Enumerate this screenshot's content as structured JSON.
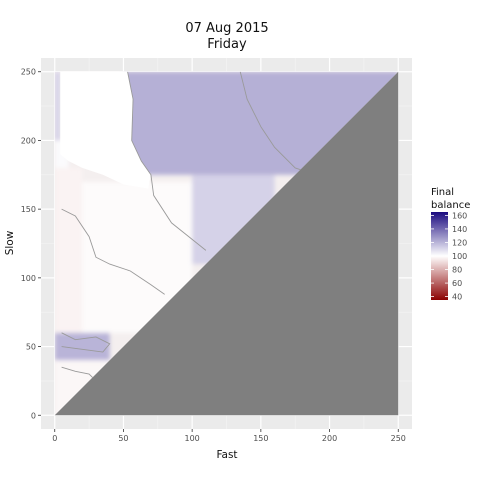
{
  "chart_data": {
    "type": "heatmap",
    "title": "07 Aug 2015",
    "subtitle": "Friday",
    "xlabel": "Fast",
    "ylabel": "Slow",
    "xlim": [
      -10,
      260
    ],
    "ylim": [
      -10,
      260
    ],
    "x_ticks": [
      0,
      50,
      100,
      150,
      200,
      250
    ],
    "y_ticks": [
      0,
      50,
      100,
      150,
      200,
      250
    ],
    "grid": true,
    "legend_placement": "right",
    "legend": {
      "title": "Final\nbalance",
      "title_lines": [
        "Final",
        "balance"
      ],
      "min": 35,
      "max": 165,
      "midpoint": 100,
      "ticks": [
        40,
        60,
        80,
        100,
        120,
        140,
        160
      ],
      "colors": {
        "low": "#8b0000",
        "mid": "#ffffff",
        "high": "#1a0a80"
      }
    },
    "masked_region": {
      "description_color": "#7f7f7f",
      "rule": "fast >= slow"
    },
    "missing_region_color": "#ffffff",
    "zones": [
      {
        "fast": [
          0,
          4
        ],
        "slow": [
          200,
          250
        ],
        "balance": 112
      },
      {
        "fast": [
          0,
          10
        ],
        "slow": [
          180,
          200
        ],
        "balance": 101
      },
      {
        "fast": [
          0,
          20
        ],
        "slow": [
          60,
          180
        ],
        "balance": 97
      },
      {
        "fast": [
          20,
          100
        ],
        "slow": [
          60,
          170
        ],
        "balance": 99
      },
      {
        "fast": [
          100,
          160
        ],
        "slow": [
          110,
          175
        ],
        "balance": 112
      },
      {
        "fast": [
          50,
          250
        ],
        "slow": [
          175,
          250
        ],
        "balance": 121
      },
      {
        "fast": [
          0,
          40
        ],
        "slow": [
          40,
          60
        ],
        "balance": 120
      },
      {
        "fast": [
          0,
          40
        ],
        "slow": [
          0,
          40
        ],
        "balance": 98
      }
    ]
  }
}
